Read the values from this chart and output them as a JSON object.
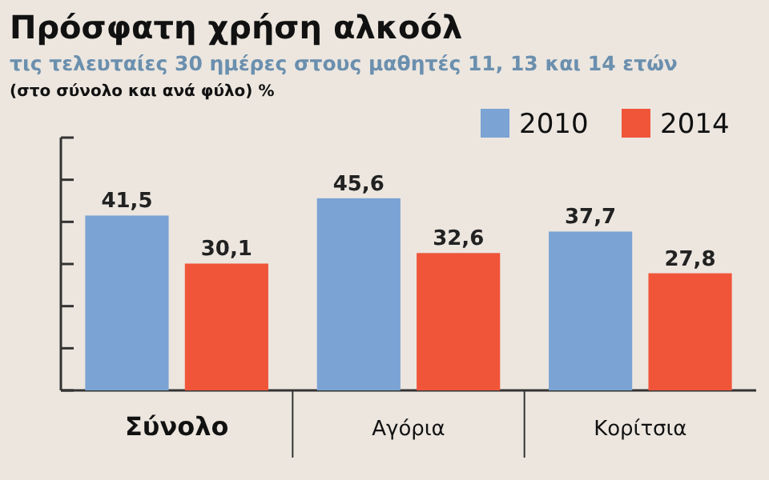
{
  "chart_data": {
    "type": "bar",
    "title": "Πρόσφατη χρήση αλκοόλ",
    "subtitle": "τις τελευταίες 30 ημέρες στους μαθητές 11, 13 και 14 ετών",
    "annotations": [
      "(στο σύνολο και ανά φύλο) %"
    ],
    "categories": [
      "Σύνολο",
      "Αγόρια",
      "Κορίτσια"
    ],
    "series": [
      {
        "name": "2010",
        "color": "#7ba3d4",
        "values": [
          41.5,
          45.6,
          37.7
        ],
        "value_labels": [
          "41,5",
          "45,6",
          "37,7"
        ]
      },
      {
        "name": "2014",
        "color": "#f0553a",
        "values": [
          30.1,
          32.6,
          27.8
        ],
        "value_labels": [
          "30,1",
          "32,6",
          "27,8"
        ]
      }
    ],
    "tick_labels": "x",
    "legend": "top right"
  }
}
